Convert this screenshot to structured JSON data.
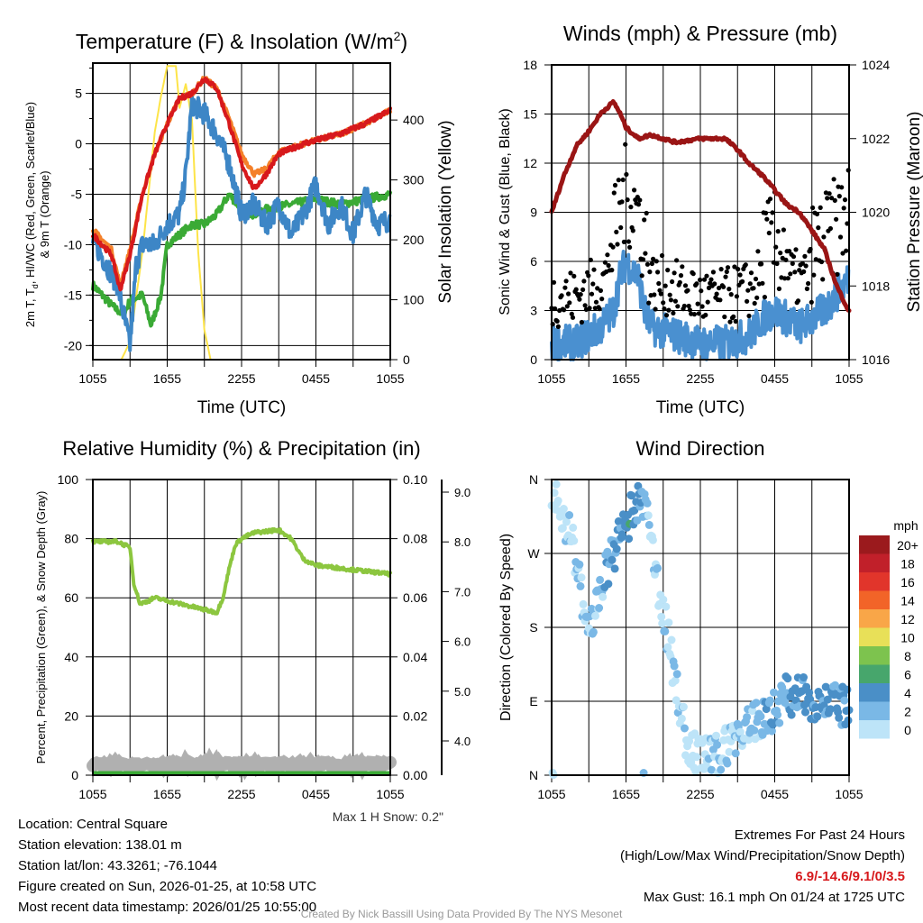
{
  "chart_data": [
    {
      "type": "line",
      "title": "Temperature (F) & Insolation (W/m²)",
      "title_main": "Temperature (F) & Insolation (W/m",
      "title_sup": "2",
      "title_end": ")",
      "xlabel": "Time (UTC)",
      "ylabel_line1": "2m T, T",
      "ylabel_sub": "d",
      "ylabel_line1b": ", HI/WC (Red, Green, Scarlet/Blue)",
      "ylabel_line2": "& 9m T (Orange)",
      "y2label": "Solar Insolation (Yellow)",
      "xticks": [
        "1055",
        "1655",
        "2255",
        "0455",
        "1055"
      ],
      "ylim": [
        -21.4,
        8
      ],
      "yticks": [
        -20,
        -15,
        -10,
        -5,
        0,
        5
      ],
      "y2lim": [
        0,
        495
      ],
      "y2ticks": [
        0,
        100,
        200,
        300,
        400
      ],
      "series": [
        {
          "name": "2m T",
          "color": "#d7191c",
          "points": [
            [
              0,
              -9
            ],
            [
              1.5,
              -11
            ],
            [
              2.2,
              -14.5
            ],
            [
              3,
              -11
            ],
            [
              4,
              -5
            ],
            [
              5,
              -1
            ],
            [
              6,
              2
            ],
            [
              7,
              4.5
            ],
            [
              8,
              5
            ],
            [
              9,
              6.5
            ],
            [
              10,
              5.5
            ],
            [
              11,
              2
            ],
            [
              12,
              -2
            ],
            [
              13,
              -4.5
            ],
            [
              14,
              -3
            ],
            [
              15,
              -1
            ],
            [
              17,
              0
            ],
            [
              20,
              1
            ],
            [
              22,
              2
            ],
            [
              24,
              3.3
            ]
          ]
        },
        {
          "name": "9m T",
          "color": "#f4802a",
          "points": [
            [
              0,
              -8.5
            ],
            [
              1.5,
              -10.5
            ],
            [
              2.2,
              -14
            ],
            [
              3,
              -10.5
            ],
            [
              4,
              -5
            ],
            [
              5,
              -1
            ],
            [
              6,
              2
            ],
            [
              7,
              4.5
            ],
            [
              8,
              5
            ],
            [
              9,
              6.5
            ],
            [
              10,
              5.5
            ],
            [
              11,
              2.5
            ],
            [
              12,
              -1
            ],
            [
              13,
              -3
            ],
            [
              14,
              -2.5
            ],
            [
              15,
              -0.8
            ],
            [
              17,
              0
            ],
            [
              20,
              1
            ],
            [
              22,
              2
            ],
            [
              24,
              3.3
            ]
          ]
        },
        {
          "name": "Td",
          "color": "#3d86c6",
          "points": [
            [
              0,
              -9.5
            ],
            [
              2,
              -14
            ],
            [
              3,
              -20
            ],
            [
              3.5,
              -12
            ],
            [
              4,
              -10
            ],
            [
              5,
              -10
            ],
            [
              6,
              -8
            ],
            [
              7,
              -7
            ],
            [
              7.5,
              -3
            ],
            [
              8,
              4
            ],
            [
              9,
              3
            ],
            [
              10,
              1
            ],
            [
              11,
              -2
            ],
            [
              12,
              -7
            ],
            [
              13,
              -6
            ],
            [
              14,
              -8
            ],
            [
              15,
              -6
            ],
            [
              16,
              -9
            ],
            [
              17,
              -7
            ],
            [
              18,
              -4
            ],
            [
              19,
              -8
            ],
            [
              20,
              -6
            ],
            [
              21,
              -9
            ],
            [
              22,
              -5
            ],
            [
              23,
              -8
            ],
            [
              24,
              -7.5
            ]
          ]
        },
        {
          "name": "HI/WC",
          "color": "#3aaa35",
          "points": [
            [
              0,
              -14
            ],
            [
              1.5,
              -16
            ],
            [
              2.5,
              -17
            ],
            [
              3,
              -15.5
            ],
            [
              4,
              -15
            ],
            [
              4.7,
              -18
            ],
            [
              5.5,
              -15
            ],
            [
              6,
              -10
            ],
            [
              7,
              -9
            ],
            [
              8,
              -8
            ],
            [
              9,
              -8
            ],
            [
              10,
              -7
            ],
            [
              11,
              -5
            ],
            [
              12,
              -6.5
            ],
            [
              13,
              -7
            ],
            [
              14,
              -6.5
            ],
            [
              16,
              -6
            ],
            [
              18,
              -5.5
            ],
            [
              20,
              -6
            ],
            [
              22,
              -5.5
            ],
            [
              24,
              -5
            ]
          ]
        },
        {
          "name": "Solar",
          "color": "#fde448",
          "axis": "right",
          "points": [
            [
              0,
              0
            ],
            [
              2.3,
              0
            ],
            [
              3,
              30
            ],
            [
              4,
              180
            ],
            [
              4.6,
              300
            ],
            [
              5,
              380
            ],
            [
              5.5,
              440
            ],
            [
              6,
              490
            ],
            [
              6.7,
              490
            ],
            [
              7,
              420
            ],
            [
              7.5,
              460
            ],
            [
              8,
              400
            ],
            [
              8.5,
              180
            ],
            [
              9,
              50
            ],
            [
              9.5,
              0
            ],
            [
              24,
              0
            ]
          ]
        }
      ]
    },
    {
      "type": "line",
      "title": "Winds (mph) & Pressure (mb)",
      "xlabel": "Time (UTC)",
      "ylabel": "Sonic Wind & Gust (Blue, Black)",
      "y2label": "Station Pressure (Maroon)",
      "xticks": [
        "1055",
        "1655",
        "2255",
        "0455",
        "1055"
      ],
      "ylim": [
        0,
        18
      ],
      "yticks": [
        0,
        3,
        6,
        9,
        12,
        15,
        18
      ],
      "y2lim": [
        1016,
        1024
      ],
      "y2ticks": [
        1016,
        1018,
        1020,
        1022,
        1024
      ],
      "series": [
        {
          "name": "Sonic Wind",
          "color": "#4a90d0",
          "points": [
            [
              0,
              1
            ],
            [
              2,
              1
            ],
            [
              3,
              1.5
            ],
            [
              4,
              2
            ],
            [
              5,
              3
            ],
            [
              5.5,
              5
            ],
            [
              6,
              6
            ],
            [
              7,
              5
            ],
            [
              7.5,
              3
            ],
            [
              8,
              2
            ],
            [
              10,
              1.5
            ],
            [
              12,
              1
            ],
            [
              14,
              1
            ],
            [
              16,
              1.5
            ],
            [
              17,
              2.5
            ],
            [
              18,
              3
            ],
            [
              19,
              2.5
            ],
            [
              20,
              2
            ],
            [
              22,
              3
            ],
            [
              24,
              5
            ]
          ]
        },
        {
          "name": "Gust",
          "color": "#000000",
          "style": "dots"
        },
        {
          "name": "Station Pressure",
          "color": "#9a1515",
          "axis": "right",
          "points": [
            [
              0,
              1020
            ],
            [
              1,
              1021
            ],
            [
              2,
              1021.8
            ],
            [
              3,
              1022.2
            ],
            [
              4,
              1022.7
            ],
            [
              5,
              1023
            ],
            [
              5.5,
              1022.7
            ],
            [
              6,
              1022.3
            ],
            [
              7,
              1022
            ],
            [
              8,
              1022.1
            ],
            [
              9,
              1022
            ],
            [
              10,
              1021.9
            ],
            [
              12,
              1022
            ],
            [
              14,
              1022
            ],
            [
              15,
              1021.7
            ],
            [
              16,
              1021.3
            ],
            [
              17,
              1021
            ],
            [
              18,
              1020.6
            ],
            [
              19,
              1020.2
            ],
            [
              20,
              1020
            ],
            [
              21,
              1019.5
            ],
            [
              22,
              1019
            ],
            [
              23,
              1018
            ],
            [
              24,
              1017.3
            ]
          ]
        }
      ]
    },
    {
      "type": "line",
      "title": "Relative Humidity (%) & Precipitation (in)",
      "ylabel": "Percent, Precipitation (Green), & Snow Depth (Gray)",
      "xticks": [
        "1055",
        "1655",
        "2255",
        "0455",
        "1055"
      ],
      "ylim": [
        0,
        100
      ],
      "yticks": [
        0,
        20,
        40,
        60,
        80,
        100
      ],
      "y2lim": [
        0,
        0.1
      ],
      "y2ticks": [
        "0.00",
        "0.02",
        "0.04",
        "0.06",
        "0.08",
        "0.10"
      ],
      "y3ticks": [
        "4.0",
        "5.0",
        "6.0",
        "7.0",
        "8.0",
        "9.0"
      ],
      "note": "Max 1 H Snow: 0.2\"",
      "series": [
        {
          "name": "RH",
          "color": "#8cc63f",
          "points": [
            [
              0,
              79
            ],
            [
              2,
              79
            ],
            [
              3,
              77
            ],
            [
              3.3,
              65
            ],
            [
              3.8,
              58
            ],
            [
              4.5,
              59
            ],
            [
              5,
              60
            ],
            [
              7,
              58
            ],
            [
              8,
              57
            ],
            [
              9,
              56
            ],
            [
              10,
              55
            ],
            [
              10.5,
              60
            ],
            [
              11,
              70
            ],
            [
              11.5,
              78
            ],
            [
              12,
              80
            ],
            [
              13,
              82
            ],
            [
              15,
              83
            ],
            [
              16,
              80
            ],
            [
              17,
              73
            ],
            [
              18,
              71
            ],
            [
              20,
              70
            ],
            [
              22,
              69
            ],
            [
              24,
              68
            ]
          ]
        },
        {
          "name": "Precipitation",
          "color": "#3aaa35",
          "value": 0
        },
        {
          "name": "Snow Depth",
          "color": "#b0b0b0",
          "value": 3.5
        }
      ]
    },
    {
      "type": "scatter",
      "title": "Wind Direction",
      "ylabel": "Direction (Colored By Speed)",
      "xticks": [
        "1055",
        "1655",
        "2255",
        "0455",
        "1055"
      ],
      "yticks": [
        "N",
        "E",
        "S",
        "W",
        "N"
      ],
      "ylim": [
        0,
        360
      ],
      "legend": {
        "title": "mph",
        "labels": [
          "20+",
          "18",
          "16",
          "14",
          "12",
          "10",
          "8",
          "6",
          "4",
          "2",
          "0"
        ],
        "colors": [
          "#9b1a1d",
          "#c1202a",
          "#e1352b",
          "#f26428",
          "#f9a648",
          "#e8e058",
          "#7dc34e",
          "#47a66c",
          "#4a8fc7",
          "#7ab8e6",
          "#bde4f8"
        ]
      }
    }
  ],
  "info": {
    "location": "Location: Central Square",
    "elevation": "Station elevation: 138.01 m",
    "latlon": "Station lat/lon: 43.3261; -76.1044",
    "created": "Figure created on Sun, 2026-01-25, at 10:58 UTC",
    "recent": "Most recent data timestamp: 2026/01/25 10:55:00"
  },
  "extremes": {
    "title": "Extremes For Past 24 Hours",
    "subtitle": "(High/Low/Max Wind/Precipitation/Snow Depth)",
    "values": "6.9/-14.6/9.1/0/3.5",
    "gust": "Max Gust: 16.1 mph On 01/24 at 1725 UTC"
  },
  "credit": "Created By Nick Bassill Using Data Provided By The NYS Mesonet"
}
